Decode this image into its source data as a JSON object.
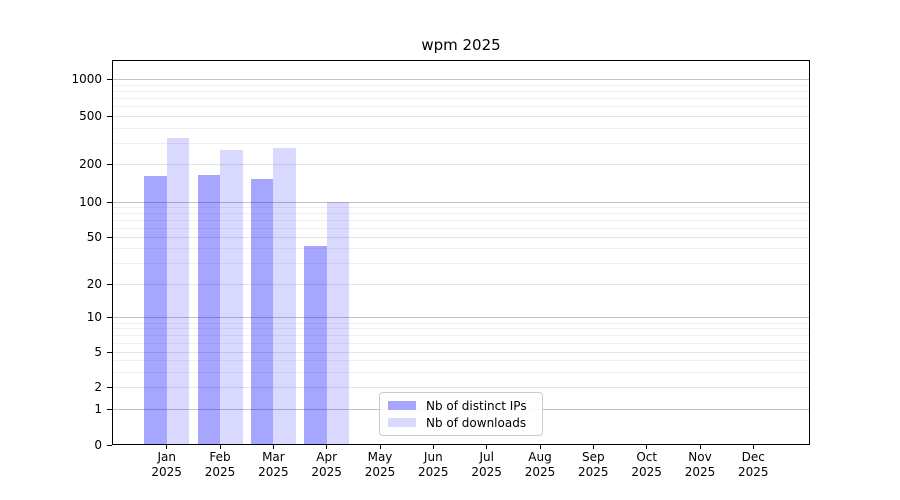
{
  "title": "wpm 2025",
  "chart_data": {
    "type": "bar",
    "title": "wpm 2025",
    "months": [
      "Jan",
      "Feb",
      "Mar",
      "Apr",
      "May",
      "Jun",
      "Jul",
      "Aug",
      "Sep",
      "Oct",
      "Nov",
      "Dec"
    ],
    "year_label": "2025",
    "series": [
      {
        "name": "Nb of distinct IPs",
        "color": "rgba(0,0,255,0.35)",
        "values": [
          160,
          165,
          152,
          42,
          0,
          0,
          0,
          0,
          0,
          0,
          0,
          0
        ]
      },
      {
        "name": "Nb of downloads",
        "color": "rgba(0,0,255,0.15)",
        "values": [
          330,
          260,
          272,
          100,
          0,
          0,
          0,
          0,
          0,
          0,
          0,
          0
        ]
      }
    ],
    "yscale": "symlog",
    "yticks": [
      0,
      1,
      2,
      5,
      10,
      20,
      50,
      100,
      200,
      500,
      1000
    ],
    "ylim": [
      0,
      1400
    ],
    "xlabel": "",
    "ylabel": "",
    "grid": "horizontal-major-and-minor",
    "legend_position": "lower-center-inside"
  }
}
